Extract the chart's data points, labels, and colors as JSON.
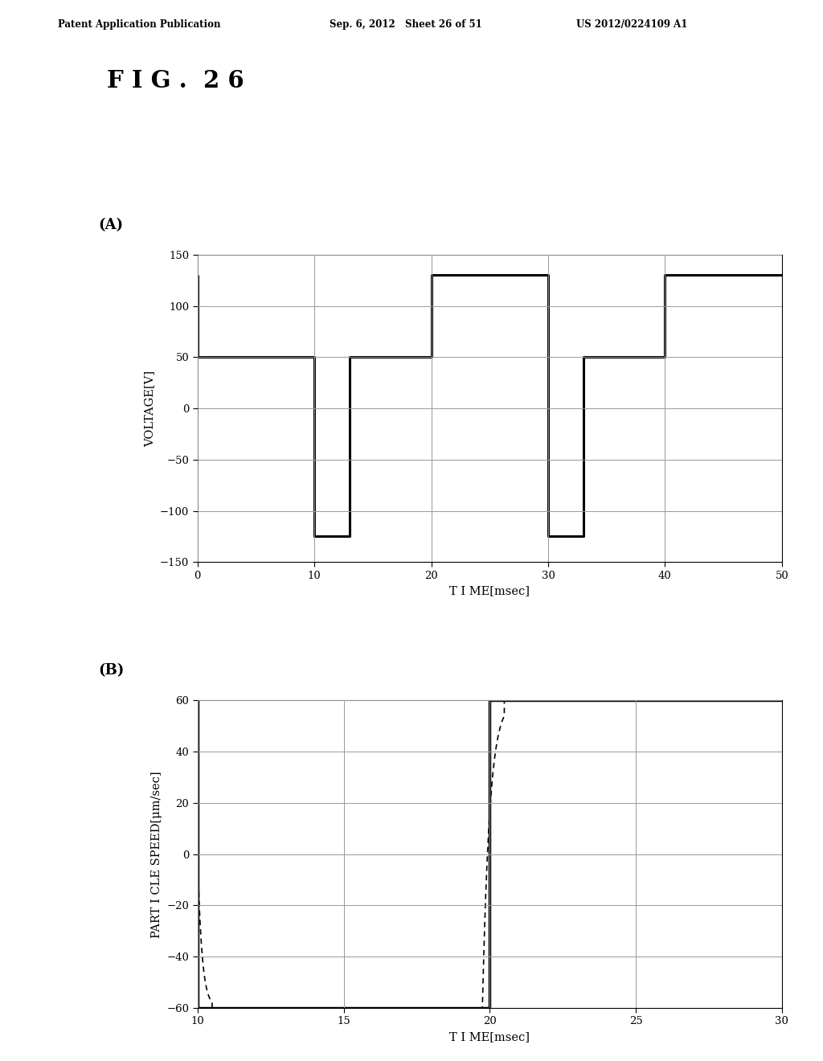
{
  "header_left": "Patent Application Publication",
  "header_mid": "Sep. 6, 2012   Sheet 26 of 51",
  "header_right": "US 2012/0224109 A1",
  "fig_label": "F I G .  2 6",
  "panel_A_label": "(A)",
  "panel_B_label": "(B)",
  "A_xlabel": "T I ME[msec]",
  "A_ylabel": "VOLTAGE[V]",
  "A_xlim": [
    0.0,
    50.0
  ],
  "A_ylim": [
    -150.0,
    150.0
  ],
  "A_xticks": [
    0.0,
    10.0,
    20.0,
    30.0,
    40.0,
    50.0
  ],
  "A_yticks": [
    -150.0,
    -100.0,
    -50.0,
    0.0,
    50.0,
    100.0,
    150.0
  ],
  "B_xlabel": "T I ME[msec]",
  "B_ylabel": "PART I CLE SPEED[μm/sec]",
  "B_xlim": [
    10.0,
    30.0
  ],
  "B_ylim": [
    -60.0,
    60.0
  ],
  "B_xticks": [
    10.0,
    15.0,
    20.0,
    25.0,
    30.0
  ],
  "B_yticks": [
    -60.0,
    -40.0,
    -20.0,
    0.0,
    20.0,
    40.0,
    60.0
  ],
  "bg_color": "#ffffff",
  "line_color": "#000000",
  "grid_color": "#999999"
}
